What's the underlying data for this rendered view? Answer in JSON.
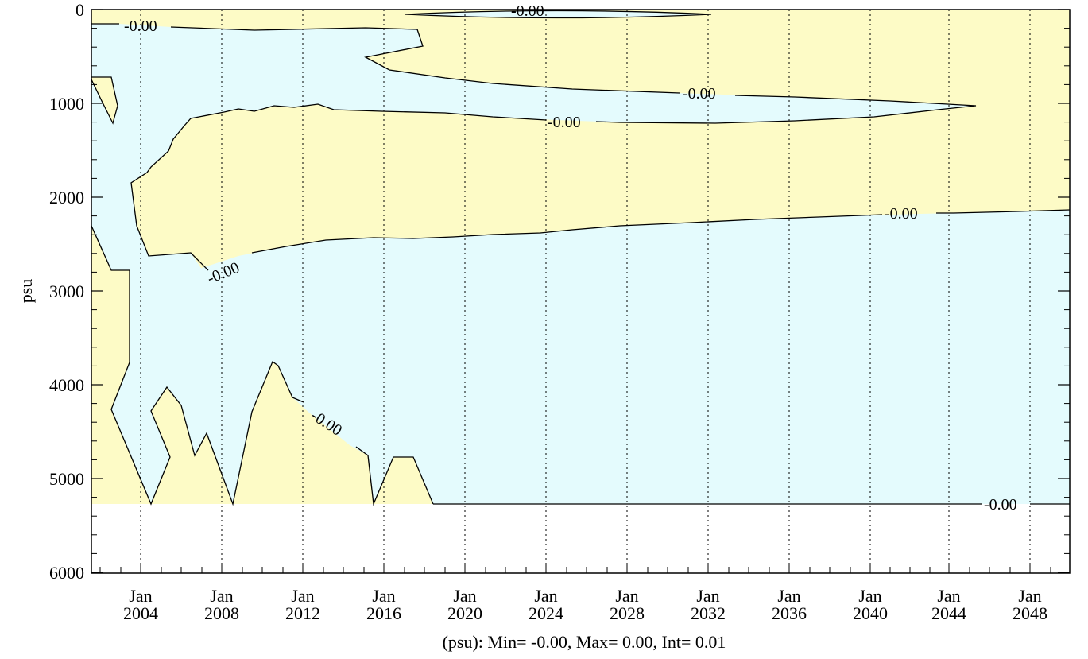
{
  "chart_data": {
    "type": "heatmap",
    "subtype": "contour",
    "ylabel": "psu",
    "caption": "(psu): Min= -0.00, Max= 0.00, Int= 0.01",
    "y_axis": {
      "ylim": [
        0,
        6000
      ],
      "inverted": true,
      "ticks": [
        "0",
        "1000",
        "2000",
        "3000",
        "4000",
        "5000",
        "6000"
      ]
    },
    "x_axis": {
      "xlim": [
        "2001",
        "2051"
      ],
      "ticks": [
        {
          "month": "Jan",
          "year": "2004"
        },
        {
          "month": "Jan",
          "year": "2008"
        },
        {
          "month": "Jan",
          "year": "2012"
        },
        {
          "month": "Jan",
          "year": "2016"
        },
        {
          "month": "Jan",
          "year": "2020"
        },
        {
          "month": "Jan",
          "year": "2024"
        },
        {
          "month": "Jan",
          "year": "2028"
        },
        {
          "month": "Jan",
          "year": "2032"
        },
        {
          "month": "Jan",
          "year": "2036"
        },
        {
          "month": "Jan",
          "year": "2040"
        },
        {
          "month": "Jan",
          "year": "2044"
        },
        {
          "month": "Jan",
          "year": "2048"
        }
      ],
      "gridlines": "dotted"
    },
    "fill_colors": {
      "positive": "#fdfbc6",
      "negative": "#e4fbfd",
      "no_data": "#ffffff"
    },
    "contour_labels": [
      "-0.00",
      "-0.00",
      "-0.00",
      "-0.00",
      "-0.00",
      "-0.00",
      "-0.00",
      "-0.00"
    ]
  }
}
